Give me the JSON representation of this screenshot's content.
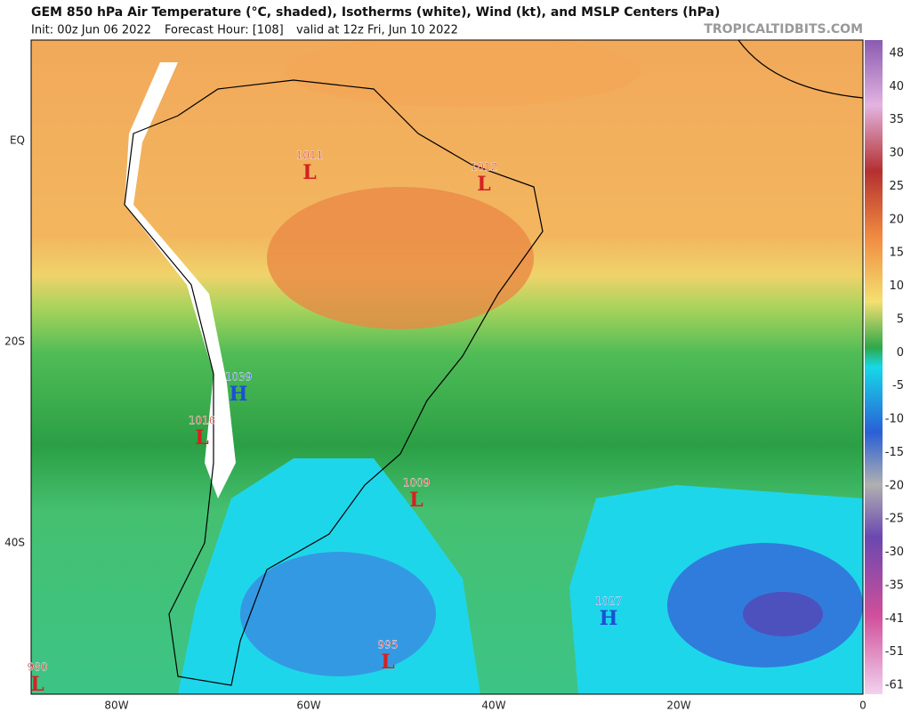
{
  "header": {
    "title": "GEM 850 hPa Air Temperature (°C, shaded), Isotherms (white), Wind (kt), and MSLP Centers (hPa)",
    "init": "Init: 00z Jun 06 2022",
    "forecast_hour": "Forecast Hour: [108]",
    "valid": "valid at 12z Fri, Jun 10 2022",
    "watermark": "TROPICALTIDBITS.COM"
  },
  "map": {
    "lat_labels": [
      "EQ",
      "20S",
      "40S"
    ],
    "lon_labels": [
      "80W",
      "60W",
      "40W",
      "20W",
      "0"
    ],
    "pressure_centers": [
      {
        "value": 1011,
        "type": "L"
      },
      {
        "value": 1012,
        "type": "L"
      },
      {
        "value": 1039,
        "type": "H"
      },
      {
        "value": 1016,
        "type": "L"
      },
      {
        "value": 1009,
        "type": "L"
      },
      {
        "value": 1027,
        "type": "H"
      },
      {
        "value": 995,
        "type": "L"
      },
      {
        "value": 980,
        "type": "L"
      }
    ]
  },
  "colorbar": {
    "labels": [
      48,
      40,
      35,
      30,
      25,
      20,
      15,
      10,
      5,
      0,
      -5,
      -10,
      -15,
      -20,
      -25,
      -30,
      -35,
      -41,
      -51,
      -61
    ]
  }
}
